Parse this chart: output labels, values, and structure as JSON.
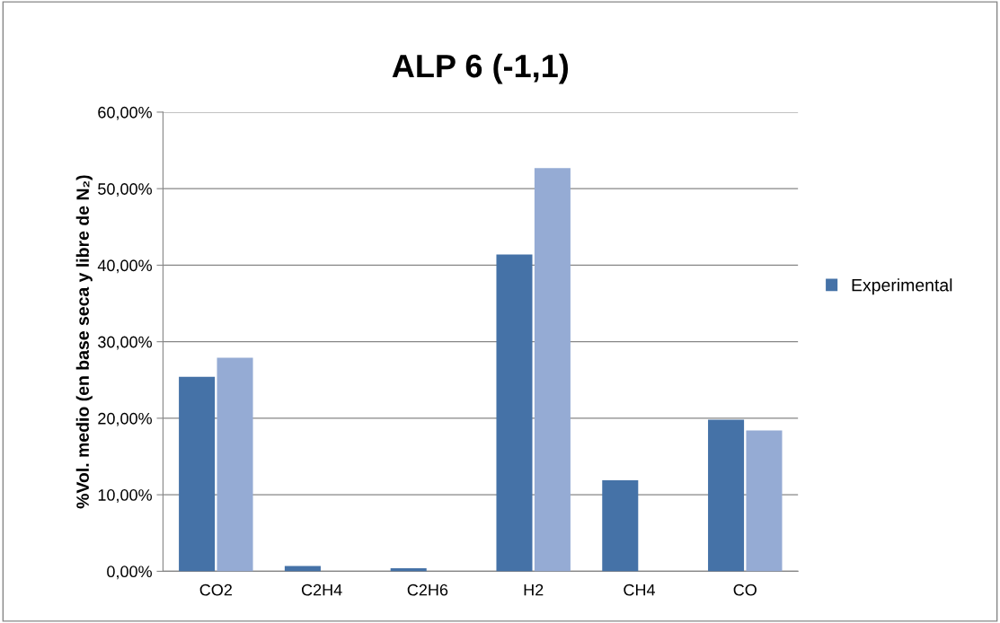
{
  "chart_data": {
    "type": "bar",
    "title": "ALP 6 (-1,1)",
    "ylabel": "%Vol. medio (en base seca y libre de N₂)",
    "categories": [
      "CO2",
      "C2H4",
      "C2H6",
      "H2",
      "CH4",
      "CO"
    ],
    "series": [
      {
        "name": "Experimental",
        "color": "#4572a7",
        "values": [
          25.4,
          0.7,
          0.4,
          41.4,
          11.9,
          19.8
        ]
      },
      {
        "color": "#95abd4",
        "values": [
          27.9,
          0.0,
          0.0,
          52.7,
          0.0,
          18.4
        ]
      }
    ],
    "ylim": [
      0,
      60
    ],
    "yticks": [
      {
        "value": 0,
        "label": "0,00%"
      },
      {
        "value": 10,
        "label": "10,00%"
      },
      {
        "value": 20,
        "label": "20,00%"
      },
      {
        "value": 30,
        "label": "30,00%"
      },
      {
        "value": 40,
        "label": "40,00%"
      },
      {
        "value": 50,
        "label": "50,00%"
      },
      {
        "value": 60,
        "label": "60,00%"
      }
    ],
    "grid": "y",
    "legend": "right"
  }
}
